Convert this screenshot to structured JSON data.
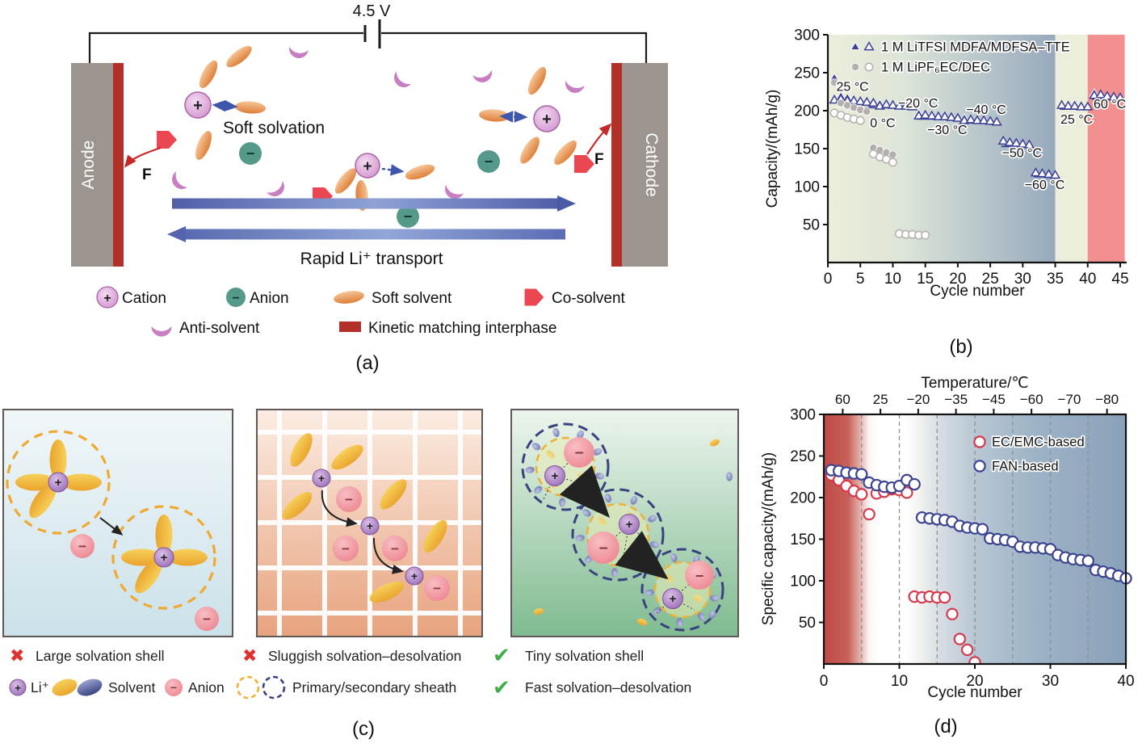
{
  "icons": {
    "plus": "+",
    "minus": "−",
    "cross-icon": "✖",
    "check-icon": "✔"
  },
  "colors": {
    "navy_marker": "#3a3e96",
    "crimson_marker": "#d63a4c",
    "gray_marker": "#b5b0ad",
    "electrode_gray": "#9b948f",
    "interphase_red": "#b23029",
    "co_solvent_red": "#ea4753",
    "cation_pink": "#dba6d9",
    "anion_teal": "#55998a",
    "anion_pink": "#ee8a94",
    "soft_solvent_orange": "#e79a5a",
    "anti_solvent_purple": "#c77fc2",
    "check_green": "#3fae49",
    "cross_red": "#e03131",
    "band_green": "#ebeeda",
    "band_salmon": "#f29090"
  },
  "panel_a": {
    "caption": "(a)",
    "voltage_label": "4.5 V",
    "anode_label": "Anode",
    "cathode_label": "Cathode",
    "soft_solvation_label": "Soft solvation",
    "transport_label": "Rapid Li⁺ transport",
    "force_label_left": "F",
    "force_label_right": "F",
    "legend": [
      {
        "icon": "cation-icon",
        "label": "Cation"
      },
      {
        "icon": "anion-icon",
        "label": "Anion"
      },
      {
        "icon": "soft-solvent-icon",
        "label": "Soft solvent"
      },
      {
        "icon": "co-solvent-icon",
        "label": "Co-solvent"
      },
      {
        "icon": "anti-solvent-icon",
        "label": "Anti-solvent"
      },
      {
        "icon": "kinetic-matching-interphase-icon",
        "label": "Kinetic matching interphase"
      }
    ]
  },
  "panel_c": {
    "caption": "(c)",
    "legend_row1": [
      {
        "icon": "cross-icon",
        "label": "Large solvation shell"
      },
      {
        "icon": "cross-icon",
        "label": "Sluggish solvation–desolvation"
      },
      {
        "icon": "check-icon",
        "label": "Tiny solvation shell"
      }
    ],
    "legend_row2": [
      {
        "icon": "li-ion-icon",
        "label": "Li⁺"
      },
      {
        "icon": "solvent-icon",
        "label": "Solvent"
      },
      {
        "icon": "anion-icon",
        "label": "Anion"
      },
      {
        "icon": "sheath-icon",
        "label": "Primary/secondary sheath"
      },
      {
        "icon": "check-icon",
        "label": "Fast solvation–desolvation"
      }
    ]
  },
  "chart_data": [
    {
      "id": "b",
      "type": "scatter",
      "caption": "(b)",
      "xlabel": "Cycle number",
      "ylabel": "Capacity/(mAh/g)",
      "xlim": [
        0,
        46
      ],
      "ylim": [
        0,
        300
      ],
      "xticks": [
        0,
        5,
        10,
        15,
        20,
        25,
        30,
        35,
        40,
        45
      ],
      "yticks": [
        50,
        100,
        150,
        200,
        250,
        300
      ],
      "legend_position": "top-left-inside",
      "legend": [
        {
          "label": "1 M LiTFSI MDFA/MDFSA–TTE",
          "shape": "triangle",
          "color": "#3a3e96"
        },
        {
          "label": "1 M LiPF₆EC/DEC",
          "shape": "circle",
          "color": "#b5b0ad"
        }
      ],
      "bands": [
        {
          "x0": 0,
          "x1": 35,
          "gradient": [
            "#ebeeda",
            "#dde5d8",
            "#b9c7cb",
            "#98a9bd"
          ]
        },
        {
          "x0": 35,
          "x1": 40,
          "color": "#ebeeda"
        },
        {
          "x0": 40,
          "x1": 45.7,
          "color": "#f29090"
        }
      ],
      "series": [
        {
          "name": "1 M LiTFSI MDFA/MDFSA–TTE (charge)",
          "shape": "triangle",
          "filled": true,
          "color": "#3a3e96",
          "points": [
            [
              1,
              243
            ],
            [
              2,
              219
            ],
            [
              3,
              217
            ],
            [
              8,
              209
            ],
            [
              14,
              196
            ],
            [
              21,
              190
            ],
            [
              41,
              223
            ]
          ]
        },
        {
          "name": "1 M LiTFSI MDFA/MDFSA–TTE (discharge)",
          "shape": "triangle",
          "filled": false,
          "color": "#3a3e96",
          "points": [
            [
              1,
              214
            ],
            [
              2,
              215
            ],
            [
              3,
              213
            ],
            [
              4,
              213
            ],
            [
              5,
              212
            ],
            [
              6,
              211
            ],
            [
              7,
              210
            ],
            [
              8,
              206
            ],
            [
              9,
              208
            ],
            [
              10,
              207
            ],
            [
              11,
              206
            ],
            [
              12,
              206
            ],
            [
              13,
              205
            ],
            [
              14,
              193
            ],
            [
              15,
              194
            ],
            [
              16,
              193
            ],
            [
              17,
              192
            ],
            [
              18,
              192
            ],
            [
              19,
              191
            ],
            [
              20,
              190
            ],
            [
              21,
              187
            ],
            [
              22,
              188
            ],
            [
              23,
              187
            ],
            [
              24,
              187
            ],
            [
              25,
              186
            ],
            [
              26,
              185
            ],
            [
              27,
              160
            ],
            [
              28,
              158
            ],
            [
              29,
              157
            ],
            [
              30,
              156
            ],
            [
              31,
              155
            ],
            [
              32,
              118
            ],
            [
              33,
              117
            ],
            [
              34,
              116
            ],
            [
              35,
              115
            ],
            [
              36,
              207
            ],
            [
              37,
              206
            ],
            [
              38,
              206
            ],
            [
              39,
              205
            ],
            [
              40,
              205
            ],
            [
              41,
              220
            ],
            [
              42,
              221
            ],
            [
              43,
              219
            ],
            [
              44,
              218
            ],
            [
              45,
              217
            ]
          ]
        },
        {
          "name": "1 M LiPF₆EC/DEC (charge)",
          "shape": "circle",
          "filled": true,
          "color": "#b5b0ad",
          "points": [
            [
              1,
              237
            ],
            [
              2,
              210
            ],
            [
              3,
              207
            ],
            [
              4,
              204
            ],
            [
              5,
              201
            ],
            [
              6,
              199
            ],
            [
              7,
              151
            ],
            [
              8,
              148
            ],
            [
              9,
              145
            ],
            [
              10,
              142
            ]
          ]
        },
        {
          "name": "1 M LiPF₆EC/DEC (discharge)",
          "shape": "circle",
          "filled": false,
          "color": "#b5b0ad",
          "points": [
            [
              1,
              197
            ],
            [
              2,
              194
            ],
            [
              3,
              191
            ],
            [
              4,
              189
            ],
            [
              5,
              187
            ],
            [
              7,
              143
            ],
            [
              8,
              139
            ],
            [
              9,
              136
            ],
            [
              10,
              132
            ],
            [
              11,
              38
            ],
            [
              12,
              37
            ],
            [
              13,
              37
            ],
            [
              14,
              36
            ],
            [
              15,
              36
            ]
          ]
        }
      ],
      "cluster_lines": [
        {
          "x1": 0.7,
          "x2": 5.3,
          "y": 211
        },
        {
          "x1": 5.7,
          "x2": 13.3,
          "y": 204
        },
        {
          "x1": 13.7,
          "x2": 20.3,
          "y": 189
        },
        {
          "x1": 20.7,
          "x2": 26.3,
          "y": 184
        },
        {
          "x1": 26.7,
          "x2": 31.3,
          "y": 153
        },
        {
          "x1": 31.7,
          "x2": 35.3,
          "y": 113
        },
        {
          "x1": 35.7,
          "x2": 40.3,
          "y": 202
        },
        {
          "x1": 40.7,
          "x2": 45.3,
          "y": 215
        }
      ],
      "annotations": [
        {
          "text": "25 °C",
          "x": 1.3,
          "y": 226
        },
        {
          "text": "0 °C",
          "x": 6.5,
          "y": 178
        },
        {
          "text": "−20 °C",
          "x": 10.8,
          "y": 204
        },
        {
          "text": "−30 °C",
          "x": 15.3,
          "y": 169
        },
        {
          "text": "−40 °C",
          "x": 21.3,
          "y": 196
        },
        {
          "text": "−50 °C",
          "x": 26.8,
          "y": 139
        },
        {
          "text": "−60 °C",
          "x": 30.3,
          "y": 97
        },
        {
          "text": "25 °C",
          "x": 35.8,
          "y": 183
        },
        {
          "text": "60 °C",
          "x": 40.9,
          "y": 203
        }
      ]
    },
    {
      "id": "d",
      "type": "scatter",
      "caption": "(d)",
      "xlabel": "Cycle number",
      "ylabel": "Specific capacity/(mAh/g)",
      "top_axis_title": "Temperature/℃",
      "top_ticks": [
        {
          "x": 2.5,
          "label": "60"
        },
        {
          "x": 7.5,
          "label": "25"
        },
        {
          "x": 12.5,
          "label": "−20"
        },
        {
          "x": 17.5,
          "label": "−35"
        },
        {
          "x": 22.5,
          "label": "−45"
        },
        {
          "x": 27.5,
          "label": "−60"
        },
        {
          "x": 32.5,
          "label": "−70"
        },
        {
          "x": 37.5,
          "label": "−80"
        }
      ],
      "xlim": [
        0,
        40
      ],
      "ylim": [
        0,
        300
      ],
      "xticks": [
        0,
        10,
        20,
        30,
        40
      ],
      "yticks": [
        50,
        100,
        150,
        200,
        250,
        300
      ],
      "gridlines_x": [
        5,
        10,
        15,
        20,
        25,
        30,
        35
      ],
      "bg_gradient": [
        [
          0,
          "#bf4a47"
        ],
        [
          0.08,
          "#c9605a"
        ],
        [
          0.12,
          "#e5b0ab"
        ],
        [
          0.15,
          "#fbf6f5"
        ],
        [
          0.18,
          "#ffffff"
        ],
        [
          0.27,
          "#ffffff"
        ],
        [
          0.32,
          "#f1f1ef"
        ],
        [
          0.38,
          "#d8dee3"
        ],
        [
          0.5,
          "#b8c7d4"
        ],
        [
          0.7,
          "#9db3c6"
        ],
        [
          1,
          "#8aa1ba"
        ]
      ],
      "legend_position": "top-right-inside",
      "legend": [
        {
          "label": "EC/EMC-based",
          "shape": "circle",
          "color": "#d63a4c"
        },
        {
          "label": "FAN-based",
          "shape": "circle",
          "color": "#3c4492"
        }
      ],
      "series": [
        {
          "name": "EC/EMC-based",
          "shape": "circle",
          "filled": false,
          "color": "#d63a4c",
          "points": [
            [
              1,
              227
            ],
            [
              2,
              221
            ],
            [
              3,
              214
            ],
            [
              4,
              208
            ],
            [
              5,
              204
            ],
            [
              6,
              180
            ],
            [
              7,
              205
            ],
            [
              8,
              207
            ],
            [
              9,
              210
            ],
            [
              10,
              209
            ],
            [
              11,
              206
            ],
            [
              12,
              81
            ],
            [
              13,
              80
            ],
            [
              14,
              81
            ],
            [
              15,
              80
            ],
            [
              16,
              80
            ],
            [
              17,
              60
            ],
            [
              18,
              30
            ],
            [
              19,
              17
            ],
            [
              20,
              2
            ]
          ]
        },
        {
          "name": "FAN-based",
          "shape": "circle",
          "filled": false,
          "color": "#3c4492",
          "points": [
            [
              1,
              233
            ],
            [
              2,
              232
            ],
            [
              3,
              230
            ],
            [
              4,
              229
            ],
            [
              5,
              228
            ],
            [
              6,
              218
            ],
            [
              7,
              215
            ],
            [
              8,
              213
            ],
            [
              9,
              212
            ],
            [
              10,
              214
            ],
            [
              11,
              221
            ],
            [
              12,
              216
            ],
            [
              13,
              176
            ],
            [
              14,
              175
            ],
            [
              15,
              174
            ],
            [
              16,
              173
            ],
            [
              17,
              171
            ],
            [
              18,
              166
            ],
            [
              19,
              164
            ],
            [
              20,
              163
            ],
            [
              21,
              162
            ],
            [
              22,
              151
            ],
            [
              23,
              150
            ],
            [
              24,
              149
            ],
            [
              25,
              147
            ],
            [
              26,
              141
            ],
            [
              27,
              140
            ],
            [
              28,
              140
            ],
            [
              29,
              139
            ],
            [
              30,
              138
            ],
            [
              31,
              131
            ],
            [
              32,
              128
            ],
            [
              33,
              126
            ],
            [
              34,
              125
            ],
            [
              35,
              124
            ],
            [
              36,
              113
            ],
            [
              37,
              111
            ],
            [
              38,
              109
            ],
            [
              39,
              106
            ],
            [
              40,
              103
            ]
          ]
        }
      ]
    }
  ]
}
